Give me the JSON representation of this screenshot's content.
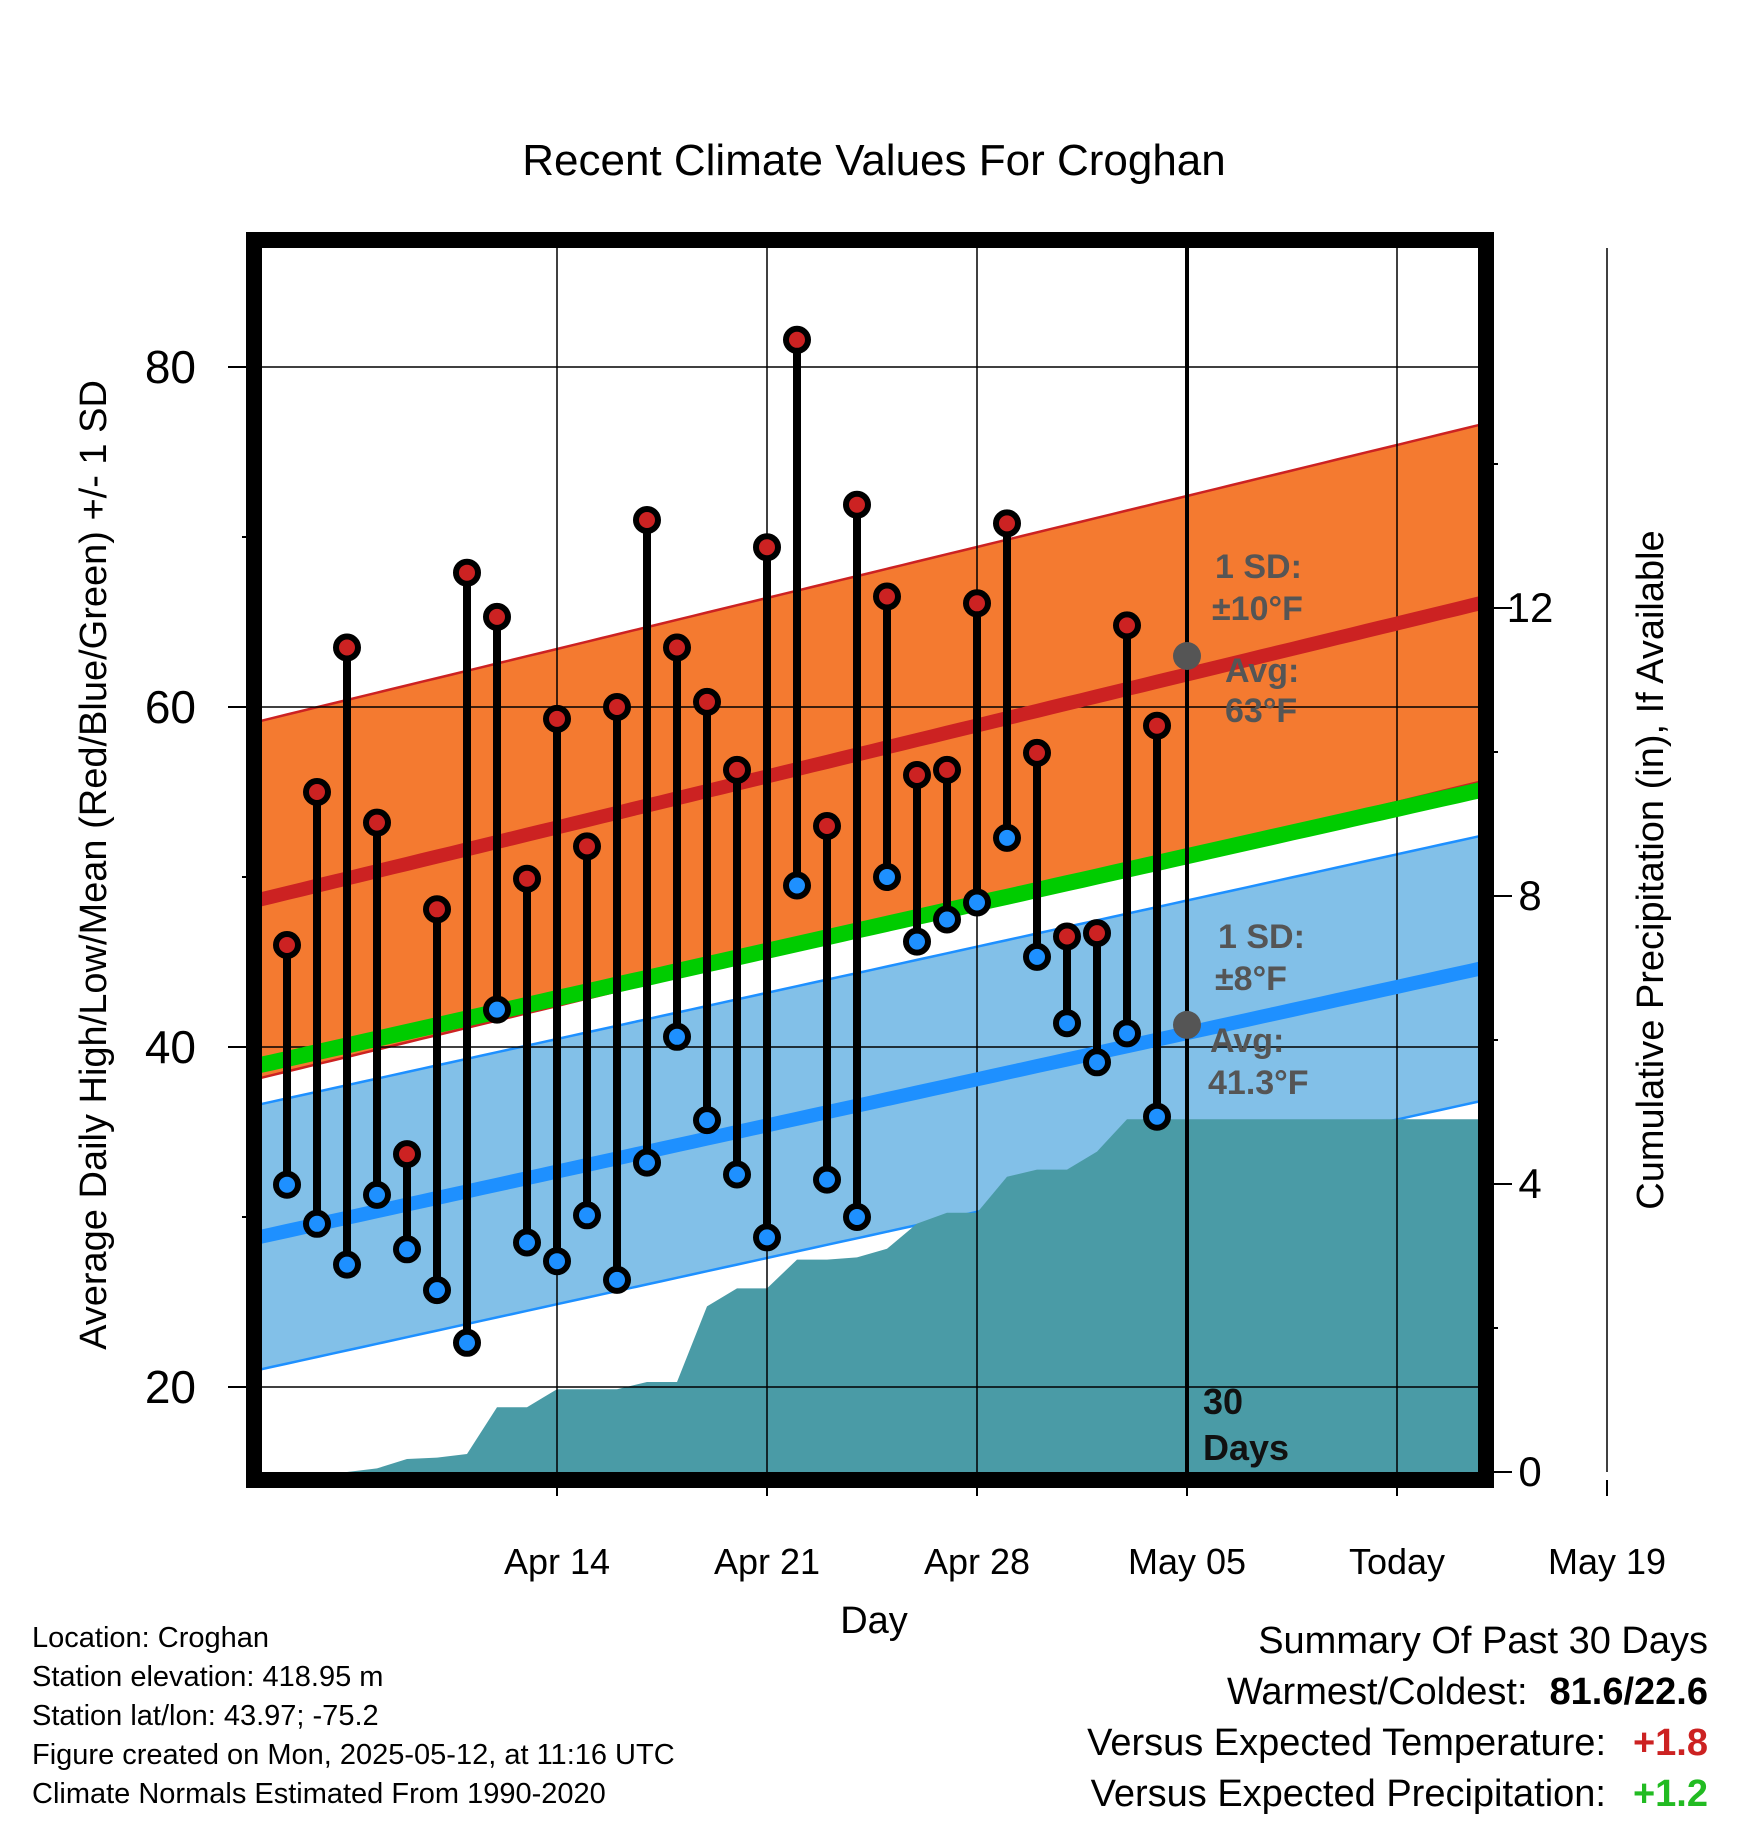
{
  "chart_data": {
    "type": "line",
    "title": "Recent Climate Values For Croghan",
    "xlabel": "Day",
    "ylabel_left": "Average Daily High/Low/Mean (Red/Blue/Green) +/- 1 SD",
    "ylabel_right": "Cumulative Precipitation (in), If Available",
    "x_tick_labels": [
      "Apr 14",
      "Apr 21",
      "Apr 28",
      "May 05",
      "Today",
      "May 19"
    ],
    "y_left_ticks": [
      "20",
      "40",
      "60",
      "80"
    ],
    "y_right_ticks": [
      "0",
      "4",
      "8",
      "12"
    ],
    "ylim_left": [
      15,
      87
    ],
    "ylim_right": [
      0,
      17
    ],
    "grid": true,
    "days_label_number": "30",
    "days_label_word": "Days",
    "colors": {
      "high": "#cc2222",
      "low": "#1e90ff",
      "mean_line": "#00cc00",
      "high_band": "#f47a30",
      "low_band": "#82c0e8",
      "precip": "#4a9ba6",
      "marker_gray": "#555555"
    },
    "annotations": {
      "high_sd_label": "1 SD:",
      "high_sd_value": "±10°F",
      "high_avg_label": "Avg:",
      "high_avg_value": "63°F",
      "low_sd_label": "1 SD:",
      "low_sd_value": "±8°F",
      "low_avg_label": "Avg:",
      "low_avg_value": "41.3°F"
    },
    "normals": {
      "days": [
        -32,
        10
      ],
      "high_avg": [
        48.2,
        66.2
      ],
      "high_sd": 10.5,
      "low_avg": [
        28.4,
        44.7
      ],
      "low_sd": 7.8,
      "mean_avg": [
        38.5,
        55.2
      ]
    },
    "today_high_avg": 63,
    "today_low_avg": 41.3,
    "series": [
      {
        "name": "High",
        "x": [
          -30,
          -29,
          -28,
          -27,
          -26,
          -25,
          -24,
          -23,
          -22,
          -21,
          -20,
          -19,
          -18,
          -17,
          -16,
          -15,
          -14,
          -13,
          -12,
          -11,
          -10,
          -9,
          -8,
          -7,
          -6,
          -5,
          -4,
          -3,
          -2,
          -1
        ],
        "values": [
          46,
          55,
          63.5,
          53.2,
          33.7,
          48.1,
          67.9,
          65.3,
          49.9,
          59.3,
          51.8,
          60,
          71,
          63.5,
          60.3,
          56.3,
          69.4,
          81.6,
          53,
          71.9,
          66.5,
          56,
          56.3,
          66.1,
          70.8,
          57.3,
          46.5,
          46.7,
          64.8,
          58.9
        ]
      },
      {
        "name": "Low",
        "x": [
          -30,
          -29,
          -28,
          -27,
          -26,
          -25,
          -24,
          -23,
          -22,
          -21,
          -20,
          -19,
          -18,
          -17,
          -16,
          -15,
          -14,
          -13,
          -12,
          -11,
          -10,
          -9,
          -8,
          -7,
          -6,
          -5,
          -4,
          -3,
          -2,
          -1
        ],
        "values": [
          31.9,
          29.6,
          27.2,
          31.3,
          28.1,
          25.7,
          22.6,
          42.2,
          28.5,
          27.4,
          30.1,
          26.3,
          33.2,
          40.6,
          35.7,
          32.5,
          28.8,
          49.5,
          32.2,
          30,
          50,
          46.2,
          47.5,
          48.5,
          52.3,
          45.3,
          41.4,
          39.1,
          40.8,
          35.9
        ]
      },
      {
        "name": "Cumulative Precipitation",
        "x": [
          -33,
          -30,
          -29,
          -28,
          -27,
          -26,
          -25,
          -24,
          -23,
          -22,
          -21,
          -20,
          -19,
          -18,
          -17,
          -16,
          -15,
          -14,
          -13,
          -12,
          -11,
          -10,
          -9,
          -8,
          -7,
          -6,
          -5,
          -4,
          -3,
          -2,
          0,
          10
        ],
        "values": [
          0,
          0,
          0,
          0,
          0.05,
          0.18,
          0.2,
          0.25,
          0.9,
          0.9,
          1.15,
          1.15,
          1.15,
          1.25,
          1.25,
          2.3,
          2.55,
          2.55,
          2.95,
          2.95,
          2.98,
          3.1,
          3.45,
          3.6,
          3.6,
          4.1,
          4.2,
          4.2,
          4.45,
          4.9,
          4.9,
          4.9
        ]
      }
    ]
  },
  "info": {
    "location": "Location: Croghan",
    "elevation": "Station elevation: 418.95 m",
    "latlon": "Station lat/lon: 43.97; -75.2",
    "created": "Figure created on Mon, 2025-05-12, at 11:16 UTC",
    "normals": "Climate Normals Estimated From 1990-2020"
  },
  "summary": {
    "title": "Summary Of Past 30 Days",
    "warm_cold_label": "Warmest/Coldest:",
    "warm_cold_value": "81.6/22.6",
    "temp_label": "Versus Expected Temperature:",
    "temp_value": "+1.8",
    "temp_color": "#cc2222",
    "precip_label": "Versus Expected Precipitation:",
    "precip_value": "+1.2",
    "precip_color": "#22bb22"
  }
}
